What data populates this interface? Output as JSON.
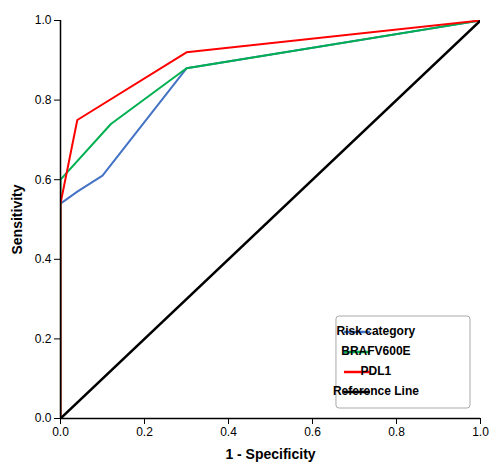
{
  "chart_data": {
    "type": "line",
    "xlabel": "1 - Specificity",
    "ylabel": "Sensitivity",
    "xlim": [
      0.0,
      1.0
    ],
    "ylim": [
      0.0,
      1.0
    ],
    "xticks": [
      {
        "value": 0.0,
        "label": "0.0"
      },
      0.2,
      0.4,
      0.6,
      0.8,
      {
        "value": 1.0,
        "label": "1.0"
      }
    ],
    "yticks": [
      {
        "value": 0.0,
        "label": "0.0"
      },
      0.2,
      0.4,
      0.6,
      0.8,
      {
        "value": 1.0,
        "label": "1.0"
      }
    ],
    "grid": false,
    "legend": "lower right",
    "series": [
      {
        "name": "Risk category",
        "color": "#4472C4",
        "line_style": "solid",
        "x": [
          0.0,
          0.0,
          0.04,
          0.1,
          0.3,
          1.0
        ],
        "values": [
          0.0,
          0.54,
          0.57,
          0.61,
          0.88,
          1.0
        ]
      },
      {
        "name": "BRAFV600E",
        "color": "#00B050",
        "line_style": "solid",
        "x": [
          0.0,
          0.0,
          0.12,
          0.3,
          1.0
        ],
        "values": [
          0.0,
          0.6,
          0.74,
          0.88,
          1.0
        ]
      },
      {
        "name": "PDL1",
        "color": "#FF0000",
        "line_style": "solid",
        "x": [
          0.0,
          0.0,
          0.04,
          0.3,
          1.0
        ],
        "values": [
          0.0,
          0.54,
          0.75,
          0.92,
          1.0
        ]
      },
      {
        "name": "Reference Line",
        "color": "#000000",
        "line_style": "solid",
        "x": [
          0.0,
          1.0
        ],
        "values": [
          0.0,
          1.0
        ]
      }
    ]
  }
}
